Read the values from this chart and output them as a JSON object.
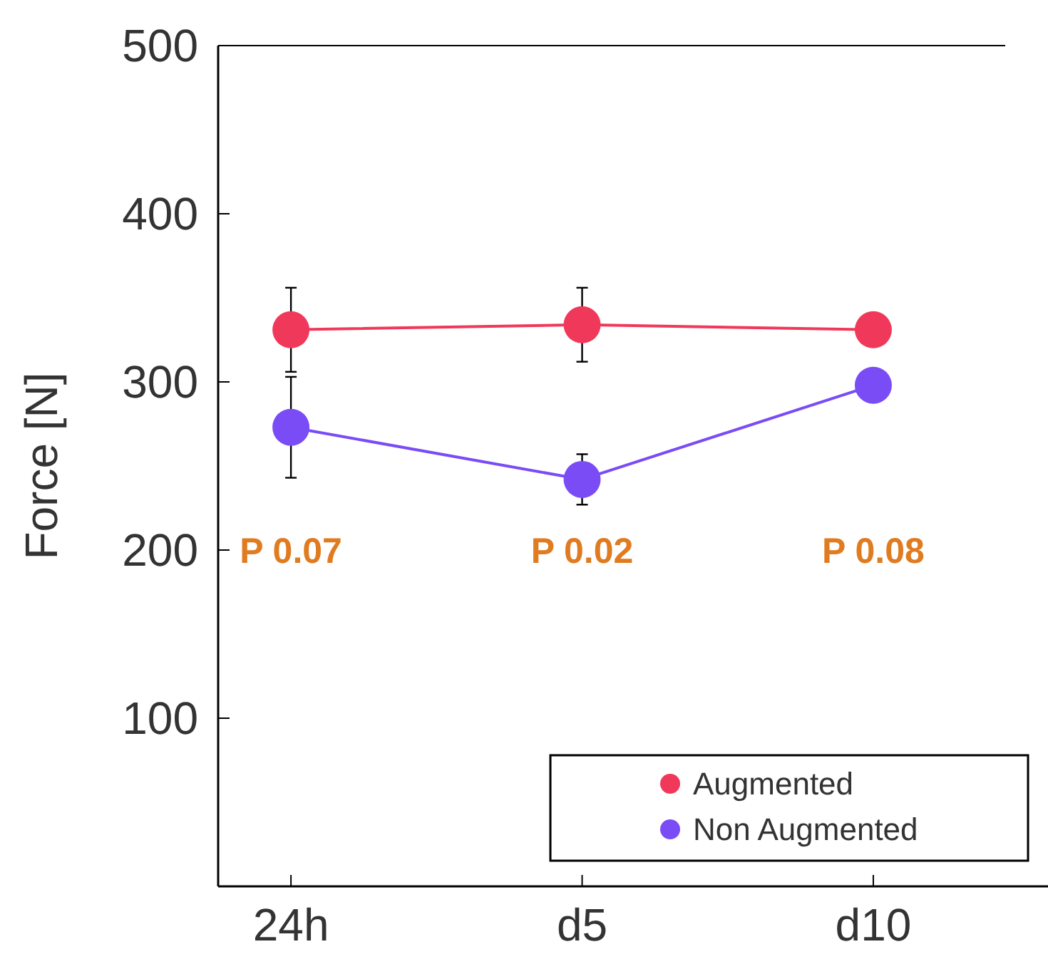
{
  "chart_data": {
    "type": "line",
    "ylabel": "Force [N]",
    "categories": [
      "24h",
      "d5",
      "d10"
    ],
    "ylim": [
      0,
      500
    ],
    "yticks": [
      100,
      200,
      300,
      400,
      500
    ],
    "marker": "circle",
    "legend": "bottom right",
    "series": [
      {
        "name": "Augmented",
        "color": "#f0395a",
        "values": [
          331,
          334,
          331
        ],
        "errors": [
          25,
          22,
          null
        ]
      },
      {
        "name": "Non Augmented",
        "color": "#7a4cf5",
        "values": [
          273,
          242,
          298
        ],
        "errors": [
          30,
          15,
          null
        ]
      }
    ],
    "annotations": [
      "P 0.07",
      "P 0.02",
      "P 0.08"
    ]
  }
}
